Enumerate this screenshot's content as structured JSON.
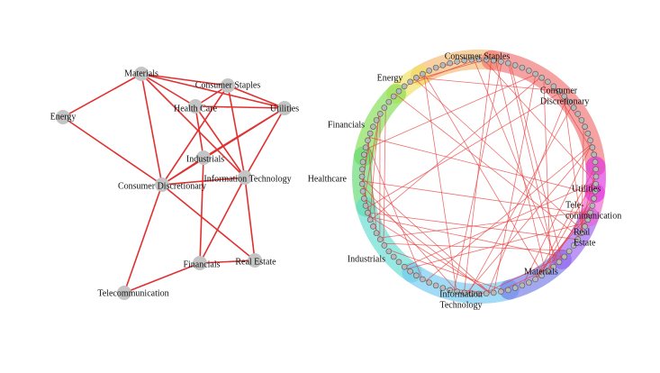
{
  "left_network": {
    "nodes": [
      {
        "label": "Materials"
      },
      {
        "label": "Energy"
      },
      {
        "label": "Consumer Staples"
      },
      {
        "label": "Health Care"
      },
      {
        "label": "Utilities"
      },
      {
        "label": "Industrials"
      },
      {
        "label": "Consumer Discretionary"
      },
      {
        "label": "Information Technology"
      },
      {
        "label": "Financials"
      },
      {
        "label": "Real Estate"
      },
      {
        "label": "Telecommunication"
      }
    ]
  },
  "right_network": {
    "groups": [
      {
        "label_lines": [
          "Consumer Staples"
        ]
      },
      {
        "label_lines": [
          "Energy"
        ]
      },
      {
        "label_lines": [
          "Consumer",
          "Discretionary"
        ]
      },
      {
        "label_lines": [
          "Financials"
        ]
      },
      {
        "label_lines": [
          "Healthcare"
        ]
      },
      {
        "label_lines": [
          "Industrials"
        ]
      },
      {
        "label_lines": [
          "Information",
          "Technology"
        ]
      },
      {
        "label_lines": [
          "Materials"
        ]
      },
      {
        "label_lines": [
          "Real",
          "Estate"
        ]
      },
      {
        "label_lines": [
          "Tele-",
          "communication"
        ]
      },
      {
        "label_lines": [
          "Utilities"
        ]
      }
    ]
  }
}
